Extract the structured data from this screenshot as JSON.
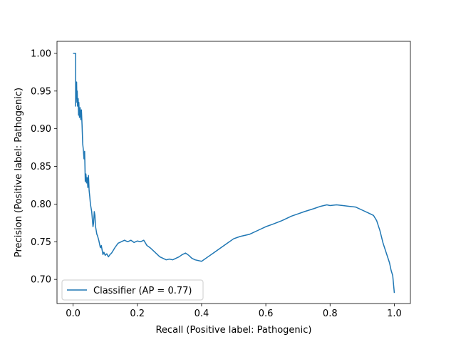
{
  "chart_data": {
    "type": "line",
    "title": "",
    "xlabel": "Recall (Positive label: Pathogenic)",
    "ylabel": "Precision (Positive label: Pathogenic)",
    "xlim": [
      -0.05,
      1.05
    ],
    "ylim": [
      0.668,
      1.016
    ],
    "xticks": [
      0.0,
      0.2,
      0.4,
      0.6,
      0.8,
      1.0
    ],
    "xtick_labels": [
      "0.0",
      "0.2",
      "0.4",
      "0.6",
      "0.8",
      "1.0"
    ],
    "yticks": [
      0.7,
      0.75,
      0.8,
      0.85,
      0.9,
      0.95,
      1.0
    ],
    "ytick_labels": [
      "0.70",
      "0.75",
      "0.80",
      "0.85",
      "0.90",
      "0.95",
      "1.00"
    ],
    "grid": false,
    "legend_position": "lower-left",
    "colors": {
      "series": "#1f77b4"
    },
    "series": [
      {
        "name": "Classifier (AP = 0.77)",
        "x": [
          0.0,
          0.0,
          0.008,
          0.008,
          0.009,
          0.01,
          0.011,
          0.012,
          0.013,
          0.014,
          0.016,
          0.017,
          0.018,
          0.02,
          0.022,
          0.024,
          0.026,
          0.028,
          0.03,
          0.032,
          0.034,
          0.036,
          0.037,
          0.038,
          0.04,
          0.042,
          0.044,
          0.046,
          0.048,
          0.05,
          0.052,
          0.054,
          0.056,
          0.058,
          0.06,
          0.062,
          0.064,
          0.066,
          0.068,
          0.07,
          0.072,
          0.074,
          0.076,
          0.078,
          0.08,
          0.082,
          0.085,
          0.088,
          0.09,
          0.093,
          0.096,
          0.1,
          0.105,
          0.11,
          0.115,
          0.12,
          0.13,
          0.14,
          0.15,
          0.16,
          0.17,
          0.18,
          0.19,
          0.2,
          0.21,
          0.22,
          0.23,
          0.24,
          0.25,
          0.26,
          0.27,
          0.28,
          0.29,
          0.3,
          0.31,
          0.32,
          0.33,
          0.34,
          0.35,
          0.36,
          0.37,
          0.38,
          0.4,
          0.42,
          0.44,
          0.46,
          0.48,
          0.5,
          0.52,
          0.55,
          0.58,
          0.6,
          0.62,
          0.65,
          0.68,
          0.7,
          0.72,
          0.75,
          0.77,
          0.79,
          0.8,
          0.82,
          0.84,
          0.86,
          0.88,
          0.9,
          0.92,
          0.935,
          0.945,
          0.955,
          0.965,
          0.975,
          0.985,
          0.99,
          0.995,
          1.0
        ],
        "y": [
          1.0,
          1.0,
          1.0,
          0.93,
          0.955,
          0.94,
          0.962,
          0.935,
          0.95,
          0.93,
          0.94,
          0.918,
          0.935,
          0.915,
          0.928,
          0.912,
          0.925,
          0.905,
          0.88,
          0.872,
          0.86,
          0.87,
          0.85,
          0.83,
          0.84,
          0.828,
          0.835,
          0.822,
          0.838,
          0.818,
          0.81,
          0.8,
          0.795,
          0.79,
          0.78,
          0.77,
          0.775,
          0.79,
          0.785,
          0.77,
          0.765,
          0.76,
          0.758,
          0.755,
          0.752,
          0.748,
          0.742,
          0.745,
          0.74,
          0.733,
          0.736,
          0.732,
          0.734,
          0.73,
          0.733,
          0.735,
          0.742,
          0.748,
          0.75,
          0.752,
          0.75,
          0.752,
          0.749,
          0.751,
          0.75,
          0.752,
          0.745,
          0.742,
          0.738,
          0.734,
          0.73,
          0.728,
          0.726,
          0.727,
          0.726,
          0.728,
          0.73,
          0.733,
          0.735,
          0.732,
          0.728,
          0.726,
          0.724,
          0.73,
          0.736,
          0.742,
          0.748,
          0.754,
          0.757,
          0.76,
          0.766,
          0.77,
          0.773,
          0.778,
          0.784,
          0.787,
          0.79,
          0.794,
          0.797,
          0.799,
          0.798,
          0.799,
          0.798,
          0.797,
          0.796,
          0.792,
          0.788,
          0.785,
          0.778,
          0.765,
          0.748,
          0.735,
          0.722,
          0.712,
          0.705,
          0.682
        ]
      }
    ]
  }
}
